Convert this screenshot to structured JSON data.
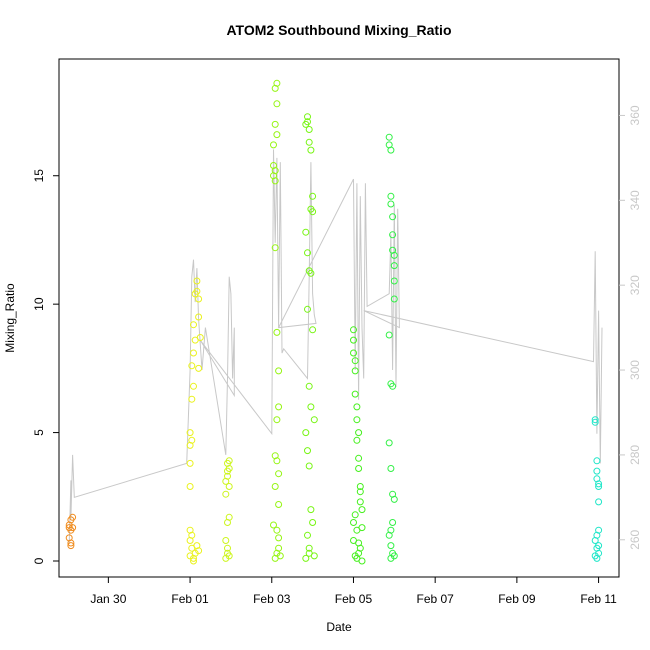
{
  "chart_data": {
    "type": "scatter",
    "title": "ATOM2 Southbound Mixing_Ratio",
    "xlabel": "Date",
    "ylabel": "Mixing_Ratio",
    "xlim": [
      "2017-01-28T19:00",
      "2017-02-11T12:00"
    ],
    "ylim": [
      0,
      19
    ],
    "x_ticks": [
      {
        "label": "Jan 30",
        "date": "2017-01-30"
      },
      {
        "label": "Feb 01",
        "date": "2017-02-01"
      },
      {
        "label": "Feb 03",
        "date": "2017-02-03"
      },
      {
        "label": "Feb 05",
        "date": "2017-02-05"
      },
      {
        "label": "Feb 07",
        "date": "2017-02-07"
      },
      {
        "label": "Feb 09",
        "date": "2017-02-09"
      },
      {
        "label": "Feb 11",
        "date": "2017-02-11"
      }
    ],
    "y_ticks": [
      0,
      5,
      10,
      15
    ],
    "y2_ticks": [
      260,
      280,
      300,
      320,
      340,
      360
    ],
    "y2lim": [
      255,
      370
    ],
    "grid": false,
    "colors": {
      "line": "#c8c8c8",
      "axis": "#000000",
      "y2_axis": "#c8c8c8"
    },
    "series": [
      {
        "color": "#f08c1e",
        "x": [
          "2017-01-29T01:00",
          "2017-01-29T01:00",
          "2017-01-29T01:00",
          "2017-01-29T02:00",
          "2017-01-29T02:00",
          "2017-01-29T02:00",
          "2017-01-29T02:00",
          "2017-01-29T03:00",
          "2017-01-29T03:00"
        ],
        "y": [
          1.4,
          1.3,
          0.9,
          1.2,
          1.6,
          0.6,
          0.7,
          1.3,
          1.7
        ]
      },
      {
        "color": "#eaf21e",
        "x": [
          "2017-02-01T00:00",
          "2017-02-01T00:00",
          "2017-02-01T00:00",
          "2017-02-01T00:00",
          "2017-02-01T01:00",
          "2017-02-01T01:00",
          "2017-02-01T01:00",
          "2017-02-01T02:00",
          "2017-02-01T02:00",
          "2017-02-01T02:00",
          "2017-02-01T03:00",
          "2017-02-01T03:00",
          "2017-02-01T04:00",
          "2017-02-01T04:00",
          "2017-02-01T05:00",
          "2017-02-01T05:00",
          "2017-02-01T05:00",
          "2017-02-01T06:00",
          "2017-02-01T00:00",
          "2017-02-01T01:00",
          "2017-02-01T02:00",
          "2017-02-01T00:00",
          "2017-02-01T01:00",
          "2017-02-01T03:00",
          "2017-02-01T04:00",
          "2017-02-01T00:00",
          "2017-02-01T02:00",
          "2017-02-01T05:00"
        ],
        "y": [
          2.9,
          4.5,
          5.0,
          3.8,
          4.7,
          6.3,
          7.6,
          6.8,
          8.1,
          9.2,
          8.6,
          10.4,
          10.9,
          10.5,
          10.2,
          9.5,
          7.5,
          8.7,
          0.2,
          0.5,
          0.1,
          1.2,
          1.0,
          0.3,
          0.6,
          0.8,
          0.0,
          0.4
        ]
      },
      {
        "color": "#cdf51e",
        "x": [
          "2017-02-01T21:00",
          "2017-02-01T21:00",
          "2017-02-01T22:00",
          "2017-02-01T22:00",
          "2017-02-01T22:00",
          "2017-02-01T23:00",
          "2017-02-01T23:00",
          "2017-02-01T23:00",
          "2017-02-01T21:00",
          "2017-02-01T22:00",
          "2017-02-01T23:00",
          "2017-02-01T21:00",
          "2017-02-01T22:00",
          "2017-02-01T23:00",
          "2017-02-01T22:00"
        ],
        "y": [
          2.6,
          3.1,
          3.5,
          3.8,
          3.3,
          3.9,
          3.6,
          2.9,
          0.1,
          0.3,
          0.2,
          0.8,
          1.5,
          1.7,
          0.5
        ]
      },
      {
        "color": "#96f514",
        "x": [
          "2017-02-03T01:00",
          "2017-02-03T01:00",
          "2017-02-03T02:00",
          "2017-02-03T02:00",
          "2017-02-03T01:00",
          "2017-02-03T02:00",
          "2017-02-03T02:00",
          "2017-02-03T03:00",
          "2017-02-03T03:00",
          "2017-02-03T03:00",
          "2017-02-03T02:00",
          "2017-02-03T03:00",
          "2017-02-03T04:00",
          "2017-02-03T04:00",
          "2017-02-03T03:00",
          "2017-02-03T02:00",
          "2017-02-03T03:00",
          "2017-02-03T04:00",
          "2017-02-03T04:00",
          "2017-02-03T01:00",
          "2017-02-03T02:00",
          "2017-02-03T03:00",
          "2017-02-03T04:00",
          "2017-02-03T05:00",
          "2017-02-03T02:00",
          "2017-02-03T03:00",
          "2017-02-03T04:00"
        ],
        "y": [
          15.4,
          15.0,
          15.2,
          14.8,
          16.2,
          17.0,
          18.4,
          18.6,
          17.8,
          16.6,
          12.2,
          8.9,
          7.4,
          6.0,
          5.5,
          4.1,
          3.9,
          3.4,
          2.2,
          1.4,
          2.9,
          1.2,
          0.9,
          0.2,
          0.1,
          0.3,
          0.5
        ]
      },
      {
        "color": "#78f514",
        "x": [
          "2017-02-03T20:00",
          "2017-02-03T21:00",
          "2017-02-03T21:00",
          "2017-02-03T22:00",
          "2017-02-03T22:00",
          "2017-02-03T23:00",
          "2017-02-03T23:00",
          "2017-02-04T00:00",
          "2017-02-04T00:00",
          "2017-02-03T20:00",
          "2017-02-03T21:00",
          "2017-02-03T22:00",
          "2017-02-03T23:00",
          "2017-02-04T00:00",
          "2017-02-03T21:00",
          "2017-02-03T22:00",
          "2017-02-03T23:00",
          "2017-02-04T01:00",
          "2017-02-03T20:00",
          "2017-02-03T21:00",
          "2017-02-03T22:00",
          "2017-02-03T23:00",
          "2017-02-04T00:00",
          "2017-02-03T21:00",
          "2017-02-03T22:00",
          "2017-02-04T01:00",
          "2017-02-03T20:00",
          "2017-02-03T22:00"
        ],
        "y": [
          17.0,
          17.3,
          17.1,
          16.8,
          16.3,
          16.0,
          13.7,
          14.2,
          13.6,
          12.8,
          12.0,
          11.3,
          11.2,
          9.0,
          9.8,
          6.8,
          6.0,
          5.5,
          5.0,
          4.3,
          3.7,
          2.0,
          1.5,
          1.0,
          0.5,
          0.2,
          0.1,
          0.3
        ]
      },
      {
        "color": "#46f01e",
        "x": [
          "2017-02-05T00:00",
          "2017-02-05T00:00",
          "2017-02-05T00:00",
          "2017-02-05T01:00",
          "2017-02-05T01:00",
          "2017-02-05T01:00",
          "2017-02-05T02:00",
          "2017-02-05T02:00",
          "2017-02-05T02:00",
          "2017-02-05T03:00",
          "2017-02-05T03:00",
          "2017-02-05T03:00",
          "2017-02-05T04:00",
          "2017-02-05T04:00",
          "2017-02-05T04:00",
          "2017-02-05T05:00",
          "2017-02-05T05:00",
          "2017-02-05T00:00",
          "2017-02-05T01:00",
          "2017-02-05T02:00",
          "2017-02-05T03:00",
          "2017-02-05T04:00",
          "2017-02-05T01:00",
          "2017-02-05T02:00",
          "2017-02-05T03:00",
          "2017-02-05T00:00",
          "2017-02-05T05:00"
        ],
        "y": [
          9.0,
          8.6,
          8.1,
          7.8,
          7.4,
          6.5,
          6.0,
          5.5,
          4.7,
          5.0,
          4.0,
          3.6,
          2.9,
          2.7,
          2.3,
          2.0,
          1.3,
          1.5,
          1.8,
          1.2,
          0.7,
          0.5,
          0.2,
          0.1,
          0.3,
          0.8,
          0.0
        ]
      },
      {
        "color": "#32f046",
        "x": [
          "2017-02-05T21:00",
          "2017-02-05T21:00",
          "2017-02-05T22:00",
          "2017-02-05T22:00",
          "2017-02-05T22:00",
          "2017-02-05T23:00",
          "2017-02-05T23:00",
          "2017-02-05T23:00",
          "2017-02-06T00:00",
          "2017-02-06T00:00",
          "2017-02-06T00:00",
          "2017-02-05T21:00",
          "2017-02-05T22:00",
          "2017-02-05T23:00",
          "2017-02-06T00:00",
          "2017-02-05T21:00",
          "2017-02-05T22:00",
          "2017-02-05T23:00",
          "2017-02-06T00:00",
          "2017-02-05T22:00",
          "2017-02-05T21:00",
          "2017-02-05T22:00",
          "2017-02-05T23:00",
          "2017-02-06T00:00",
          "2017-02-05T22:00",
          "2017-02-05T23:00"
        ],
        "y": [
          16.5,
          16.2,
          16.0,
          14.2,
          13.9,
          13.4,
          12.7,
          12.1,
          11.9,
          11.5,
          10.9,
          8.8,
          6.9,
          6.8,
          10.2,
          4.6,
          3.6,
          2.6,
          2.4,
          1.2,
          1.0,
          0.6,
          0.3,
          0.2,
          0.1,
          1.5
        ]
      },
      {
        "color": "#1ee6c8",
        "x": [
          "2017-02-10T22:00",
          "2017-02-10T22:00",
          "2017-02-10T23:00",
          "2017-02-10T23:00",
          "2017-02-10T23:00",
          "2017-02-11T00:00",
          "2017-02-11T00:00",
          "2017-02-11T00:00",
          "2017-02-10T22:00",
          "2017-02-10T23:00",
          "2017-02-11T00:00",
          "2017-02-10T22:00",
          "2017-02-10T23:00",
          "2017-02-11T00:00",
          "2017-02-11T00:00",
          "2017-02-10T23:00"
        ],
        "y": [
          5.5,
          5.4,
          3.9,
          3.5,
          3.2,
          3.0,
          2.9,
          2.3,
          0.8,
          0.5,
          1.2,
          0.2,
          0.1,
          0.3,
          0.6,
          1.0
        ]
      }
    ],
    "line_series": {
      "axis": "y2",
      "color": "#c8c8c8",
      "x": [
        "2017-01-29T01:00",
        "2017-01-29T02:00",
        "2017-01-29T02:00",
        "2017-01-29T03:00",
        "2017-01-29T04:00",
        "2017-01-31T22:00",
        "2017-02-01T00:00",
        "2017-02-01T01:00",
        "2017-02-01T02:00",
        "2017-02-01T03:00",
        "2017-02-01T04:00",
        "2017-02-01T05:00",
        "2017-02-01T06:00",
        "2017-02-01T07:00",
        "2017-02-01T09:00",
        "2017-02-01T21:00",
        "2017-02-01T22:00",
        "2017-02-01T23:00",
        "2017-02-02T00:00",
        "2017-02-02T01:00",
        "2017-02-02T02:00",
        "2017-02-02T02:00",
        "2017-02-01T06:00",
        "2017-02-03T00:00",
        "2017-02-03T01:00",
        "2017-02-03T02:00",
        "2017-02-03T03:00",
        "2017-02-03T04:00",
        "2017-02-03T05:00",
        "2017-02-03T06:00",
        "2017-02-03T07:00",
        "2017-02-03T21:00",
        "2017-02-03T22:00",
        "2017-02-03T23:00",
        "2017-02-04T00:00",
        "2017-02-04T01:00",
        "2017-02-04T02:00",
        "2017-02-03T04:00",
        "2017-02-05T00:00",
        "2017-02-05T01:00",
        "2017-02-05T02:00",
        "2017-02-05T03:00",
        "2017-02-05T04:00",
        "2017-02-05T05:00",
        "2017-02-05T06:00",
        "2017-02-05T07:00",
        "2017-02-05T08:00",
        "2017-02-05T21:00",
        "2017-02-05T22:00",
        "2017-02-05T23:00",
        "2017-02-06T00:00",
        "2017-02-06T01:00",
        "2017-02-06T02:00",
        "2017-02-06T03:00",
        "2017-02-05T06:00",
        "2017-02-10T21:00",
        "2017-02-10T22:00",
        "2017-02-10T23:00",
        "2017-02-11T00:00",
        "2017-02-11T01:00",
        "2017-02-11T02:00"
      ],
      "y": [
        259,
        274,
        265,
        280,
        270,
        278,
        300,
        322,
        326,
        316,
        324,
        312,
        306,
        300,
        310,
        280,
        298,
        322,
        318,
        298,
        310,
        294,
        307,
        285,
        352,
        330,
        350,
        310,
        349,
        304,
        305,
        298,
        322,
        349,
        318,
        313,
        311,
        310,
        345,
        300,
        344,
        293,
        341,
        310,
        298,
        344,
        315,
        318,
        332,
        300,
        339,
        296,
        338,
        310,
        314,
        302,
        328,
        285,
        314,
        278,
        310
      ]
    }
  }
}
